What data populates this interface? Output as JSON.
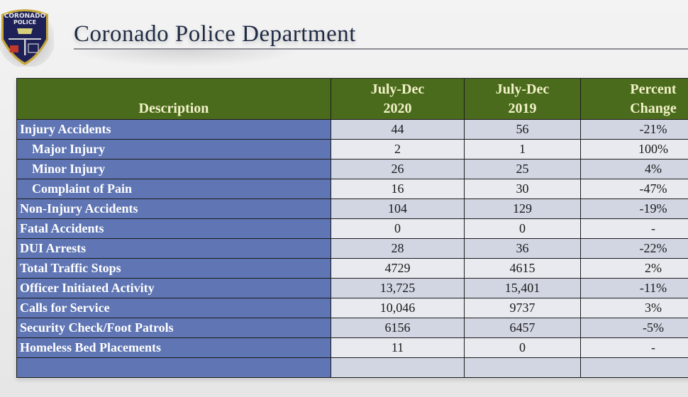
{
  "header": {
    "logo": {
      "icon": "police-badge-icon",
      "text_top": "CORONADO",
      "text_bottom": "POLICE"
    },
    "title": "Coronado Police Department"
  },
  "colors": {
    "header_green": "#4a6a1c",
    "label_blue": "#5f75b4",
    "row_shade": "#d2d6e3",
    "row_light": "#e9eaef",
    "header_text": "#f2f2c8",
    "title_color": "#1f2b44"
  },
  "table": {
    "columns": [
      {
        "line1": "",
        "line2": "Description"
      },
      {
        "line1": "July-Dec",
        "line2": "2020"
      },
      {
        "line1": "July-Dec",
        "line2": "2019"
      },
      {
        "line1": "Percent",
        "line2": "Change"
      }
    ],
    "rows": [
      {
        "label": "Injury Accidents",
        "indent": false,
        "v2020": "44",
        "v2019": "56",
        "change": "-21%"
      },
      {
        "label": "Major Injury",
        "indent": true,
        "v2020": "2",
        "v2019": "1",
        "change": "100%"
      },
      {
        "label": "Minor Injury",
        "indent": true,
        "v2020": "26",
        "v2019": "25",
        "change": "4%"
      },
      {
        "label": "Complaint of Pain",
        "indent": true,
        "v2020": "16",
        "v2019": "30",
        "change": "-47%"
      },
      {
        "label": "Non-Injury Accidents",
        "indent": false,
        "v2020": "104",
        "v2019": "129",
        "change": "-19%"
      },
      {
        "label": "Fatal Accidents",
        "indent": false,
        "v2020": "0",
        "v2019": "0",
        "change": "-"
      },
      {
        "label": "DUI Arrests",
        "indent": false,
        "v2020": "28",
        "v2019": "36",
        "change": "-22%"
      },
      {
        "label": "Total Traffic Stops",
        "indent": false,
        "v2020": "4729",
        "v2019": "4615",
        "change": "2%"
      },
      {
        "label": "Officer Initiated Activity",
        "indent": false,
        "v2020": "13,725",
        "v2019": "15,401",
        "change": "-11%"
      },
      {
        "label": "Calls for Service",
        "indent": false,
        "v2020": "10,046",
        "v2019": "9737",
        "change": "3%"
      },
      {
        "label": "Security Check/Foot Patrols",
        "indent": false,
        "v2020": "6156",
        "v2019": "6457",
        "change": "-5%"
      },
      {
        "label": "Homeless Bed Placements",
        "indent": false,
        "v2020": "11",
        "v2019": "0",
        "change": "-"
      },
      {
        "label": "",
        "indent": false,
        "v2020": "",
        "v2019": "",
        "change": ""
      }
    ]
  }
}
